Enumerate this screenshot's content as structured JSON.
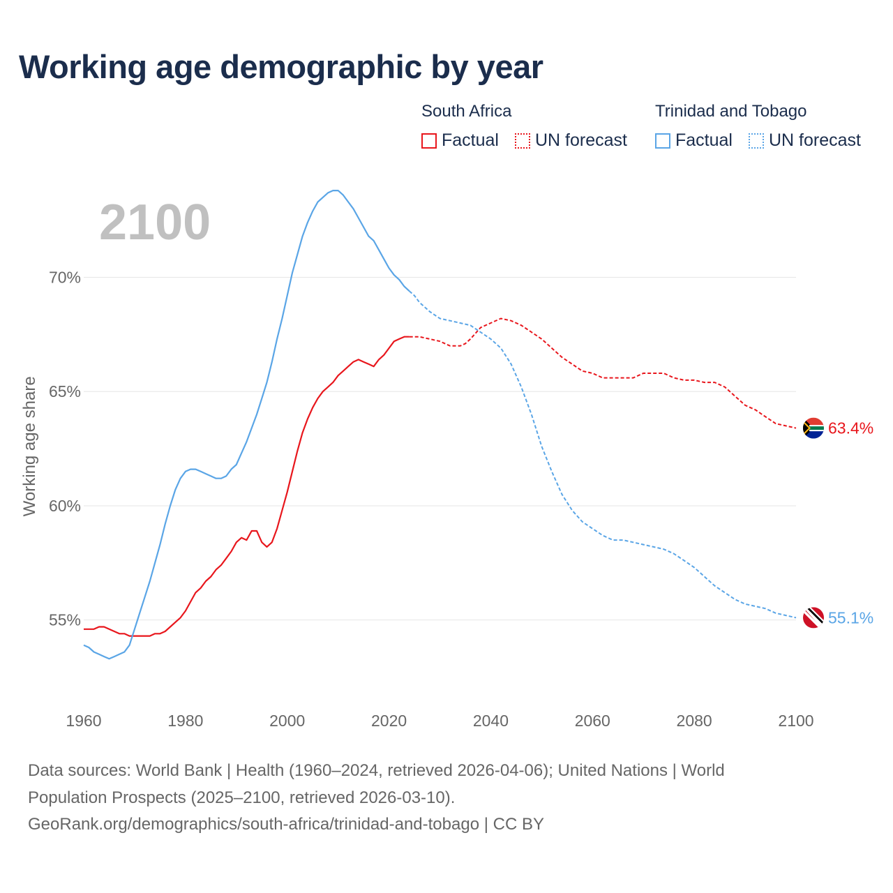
{
  "title": "Working age demographic by year",
  "legend": {
    "groups": [
      {
        "name": "South Africa",
        "color": "#e8161c",
        "factual": "Factual",
        "forecast": "UN forecast"
      },
      {
        "name": "Trinidad and Tobago",
        "color": "#5aa5e6",
        "factual": "Factual",
        "forecast": "UN forecast"
      }
    ]
  },
  "year_overlay": "2100",
  "sources": {
    "line1": "Data sources: World Bank | Health (1960–2024, retrieved 2026-04-06); United Nations | World",
    "line2": "Population Prospects (2025–2100, retrieved 2026-03-10).",
    "line3": "GeoRank.org/demographics/south-africa/trinidad-and-tobago | CC BY"
  },
  "chart_data": {
    "type": "line",
    "title": "Working age demographic by year",
    "xlabel": "",
    "ylabel": "Working age share",
    "xlim": [
      1960,
      2100
    ],
    "ylim": [
      51.6,
      74.2
    ],
    "xticks": [
      1960,
      1980,
      2000,
      2020,
      2040,
      2060,
      2080,
      2100
    ],
    "xtick_labels": [
      "1960",
      "1980",
      "2000",
      "2020",
      "2040",
      "2060",
      "2080",
      "2100"
    ],
    "yticks": [
      55,
      60,
      65,
      70
    ],
    "ytick_labels": [
      "55%",
      "60%",
      "65%",
      "70%"
    ],
    "factual_end": 2024,
    "series": [
      {
        "name": "South Africa",
        "color": "#e8161c",
        "end_label": "63.4%",
        "points": [
          [
            1960,
            54.6
          ],
          [
            1962,
            54.6
          ],
          [
            1963,
            54.7
          ],
          [
            1964,
            54.7
          ],
          [
            1966,
            54.5
          ],
          [
            1967,
            54.4
          ],
          [
            1968,
            54.4
          ],
          [
            1969,
            54.3
          ],
          [
            1970,
            54.3
          ],
          [
            1972,
            54.3
          ],
          [
            1973,
            54.3
          ],
          [
            1974,
            54.4
          ],
          [
            1975,
            54.4
          ],
          [
            1976,
            54.5
          ],
          [
            1977,
            54.7
          ],
          [
            1978,
            54.9
          ],
          [
            1979,
            55.1
          ],
          [
            1980,
            55.4
          ],
          [
            1982,
            56.2
          ],
          [
            1983,
            56.4
          ],
          [
            1984,
            56.7
          ],
          [
            1985,
            56.9
          ],
          [
            1986,
            57.2
          ],
          [
            1987,
            57.4
          ],
          [
            1988,
            57.7
          ],
          [
            1989,
            58.0
          ],
          [
            1990,
            58.4
          ],
          [
            1991,
            58.6
          ],
          [
            1992,
            58.5
          ],
          [
            1993,
            58.9
          ],
          [
            1994,
            58.9
          ],
          [
            1995,
            58.4
          ],
          [
            1996,
            58.2
          ],
          [
            1997,
            58.4
          ],
          [
            1998,
            59.0
          ],
          [
            1999,
            59.8
          ],
          [
            2000,
            60.6
          ],
          [
            2001,
            61.5
          ],
          [
            2002,
            62.4
          ],
          [
            2003,
            63.2
          ],
          [
            2004,
            63.8
          ],
          [
            2005,
            64.3
          ],
          [
            2006,
            64.7
          ],
          [
            2007,
            65.0
          ],
          [
            2008,
            65.2
          ],
          [
            2009,
            65.4
          ],
          [
            2010,
            65.7
          ],
          [
            2011,
            65.9
          ],
          [
            2012,
            66.1
          ],
          [
            2013,
            66.3
          ],
          [
            2014,
            66.4
          ],
          [
            2015,
            66.3
          ],
          [
            2016,
            66.2
          ],
          [
            2017,
            66.1
          ],
          [
            2018,
            66.4
          ],
          [
            2019,
            66.6
          ],
          [
            2020,
            66.9
          ],
          [
            2021,
            67.2
          ],
          [
            2022,
            67.3
          ],
          [
            2023,
            67.4
          ],
          [
            2024,
            67.4
          ],
          [
            2025,
            67.4
          ],
          [
            2026,
            67.4
          ],
          [
            2028,
            67.3
          ],
          [
            2030,
            67.2
          ],
          [
            2032,
            67.0
          ],
          [
            2034,
            67.0
          ],
          [
            2035,
            67.1
          ],
          [
            2036,
            67.3
          ],
          [
            2038,
            67.8
          ],
          [
            2040,
            68.0
          ],
          [
            2042,
            68.2
          ],
          [
            2044,
            68.1
          ],
          [
            2046,
            67.9
          ],
          [
            2048,
            67.6
          ],
          [
            2050,
            67.3
          ],
          [
            2052,
            66.9
          ],
          [
            2054,
            66.5
          ],
          [
            2056,
            66.2
          ],
          [
            2058,
            65.9
          ],
          [
            2060,
            65.8
          ],
          [
            2062,
            65.6
          ],
          [
            2066,
            65.6
          ],
          [
            2068,
            65.6
          ],
          [
            2070,
            65.8
          ],
          [
            2074,
            65.8
          ],
          [
            2076,
            65.6
          ],
          [
            2078,
            65.5
          ],
          [
            2080,
            65.5
          ],
          [
            2082,
            65.4
          ],
          [
            2084,
            65.4
          ],
          [
            2086,
            65.2
          ],
          [
            2088,
            64.8
          ],
          [
            2090,
            64.4
          ],
          [
            2092,
            64.2
          ],
          [
            2094,
            63.9
          ],
          [
            2096,
            63.6
          ],
          [
            2098,
            63.5
          ],
          [
            2100,
            63.4
          ]
        ]
      },
      {
        "name": "Trinidad and Tobago",
        "color": "#5aa5e6",
        "end_label": "55.1%",
        "points": [
          [
            1960,
            53.9
          ],
          [
            1961,
            53.8
          ],
          [
            1962,
            53.6
          ],
          [
            1963,
            53.5
          ],
          [
            1964,
            53.4
          ],
          [
            1965,
            53.3
          ],
          [
            1966,
            53.4
          ],
          [
            1967,
            53.5
          ],
          [
            1968,
            53.6
          ],
          [
            1969,
            53.9
          ],
          [
            1970,
            54.6
          ],
          [
            1971,
            55.3
          ],
          [
            1972,
            56.0
          ],
          [
            1973,
            56.7
          ],
          [
            1974,
            57.5
          ],
          [
            1975,
            58.3
          ],
          [
            1976,
            59.2
          ],
          [
            1977,
            60.0
          ],
          [
            1978,
            60.7
          ],
          [
            1979,
            61.2
          ],
          [
            1980,
            61.5
          ],
          [
            1981,
            61.6
          ],
          [
            1982,
            61.6
          ],
          [
            1983,
            61.5
          ],
          [
            1984,
            61.4
          ],
          [
            1985,
            61.3
          ],
          [
            1986,
            61.2
          ],
          [
            1987,
            61.2
          ],
          [
            1988,
            61.3
          ],
          [
            1989,
            61.6
          ],
          [
            1990,
            61.8
          ],
          [
            1991,
            62.3
          ],
          [
            1992,
            62.8
          ],
          [
            1993,
            63.4
          ],
          [
            1994,
            64.0
          ],
          [
            1995,
            64.7
          ],
          [
            1996,
            65.4
          ],
          [
            1997,
            66.3
          ],
          [
            1998,
            67.3
          ],
          [
            1999,
            68.2
          ],
          [
            2000,
            69.2
          ],
          [
            2001,
            70.2
          ],
          [
            2002,
            71.0
          ],
          [
            2003,
            71.8
          ],
          [
            2004,
            72.4
          ],
          [
            2005,
            72.9
          ],
          [
            2006,
            73.3
          ],
          [
            2007,
            73.5
          ],
          [
            2008,
            73.7
          ],
          [
            2009,
            73.8
          ],
          [
            2010,
            73.8
          ],
          [
            2011,
            73.6
          ],
          [
            2012,
            73.3
          ],
          [
            2013,
            73.0
          ],
          [
            2014,
            72.6
          ],
          [
            2015,
            72.2
          ],
          [
            2016,
            71.8
          ],
          [
            2017,
            71.6
          ],
          [
            2018,
            71.2
          ],
          [
            2019,
            70.8
          ],
          [
            2020,
            70.4
          ],
          [
            2021,
            70.1
          ],
          [
            2022,
            69.9
          ],
          [
            2023,
            69.6
          ],
          [
            2024,
            69.4
          ],
          [
            2025,
            69.2
          ],
          [
            2026,
            68.9
          ],
          [
            2028,
            68.5
          ],
          [
            2030,
            68.2
          ],
          [
            2032,
            68.1
          ],
          [
            2034,
            68.0
          ],
          [
            2036,
            67.9
          ],
          [
            2038,
            67.6
          ],
          [
            2040,
            67.3
          ],
          [
            2042,
            66.9
          ],
          [
            2044,
            66.2
          ],
          [
            2046,
            65.2
          ],
          [
            2048,
            64.0
          ],
          [
            2050,
            62.6
          ],
          [
            2052,
            61.5
          ],
          [
            2054,
            60.5
          ],
          [
            2056,
            59.8
          ],
          [
            2058,
            59.3
          ],
          [
            2060,
            59.0
          ],
          [
            2062,
            58.7
          ],
          [
            2064,
            58.5
          ],
          [
            2066,
            58.5
          ],
          [
            2068,
            58.4
          ],
          [
            2070,
            58.3
          ],
          [
            2072,
            58.2
          ],
          [
            2074,
            58.1
          ],
          [
            2076,
            57.9
          ],
          [
            2078,
            57.6
          ],
          [
            2080,
            57.3
          ],
          [
            2082,
            56.9
          ],
          [
            2084,
            56.5
          ],
          [
            2086,
            56.2
          ],
          [
            2088,
            55.9
          ],
          [
            2090,
            55.7
          ],
          [
            2092,
            55.6
          ],
          [
            2094,
            55.5
          ],
          [
            2096,
            55.3
          ],
          [
            2098,
            55.2
          ],
          [
            2100,
            55.1
          ]
        ]
      }
    ]
  }
}
